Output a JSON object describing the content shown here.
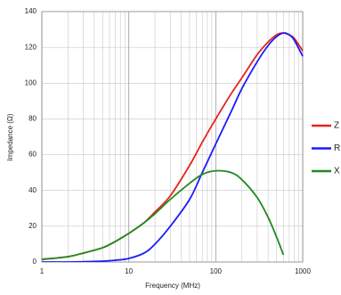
{
  "chart_data": {
    "type": "line",
    "x_label": "Frequency (MHz)",
    "y_label": "Impedance (Ω)",
    "log_x": true,
    "grid": true,
    "x": [
      1,
      2,
      3,
      5,
      7,
      10,
      15,
      20,
      30,
      50,
      70,
      100,
      150,
      200,
      300,
      400,
      500,
      600,
      700,
      800,
      1000
    ],
    "series": [
      {
        "name": "Z",
        "color": "#e8231b",
        "values": [
          1.5,
          3,
          5,
          8,
          11.5,
          16,
          22,
          28,
          37,
          54,
          67,
          80,
          94,
          103,
          116,
          123,
          127,
          128,
          127,
          125,
          118
        ]
      },
      {
        "name": "R",
        "color": "#1a1aff",
        "values": [
          0,
          0,
          0.2,
          0.5,
          1,
          2,
          5,
          10,
          20,
          35,
          50,
          66,
          84,
          97,
          112,
          121,
          126,
          128,
          127,
          124,
          115
        ]
      },
      {
        "name": "X",
        "color": "#1f8a1f",
        "values": [
          1.5,
          3,
          5,
          8,
          11.5,
          16,
          22,
          27,
          35,
          44,
          49,
          51,
          50,
          46,
          36,
          25,
          14,
          4,
          null,
          null,
          null
        ]
      }
    ],
    "xlim": [
      1,
      1000
    ],
    "ylim": [
      0,
      140
    ],
    "xticks": [
      1,
      10,
      100,
      1000
    ],
    "yticks": [
      0,
      20,
      40,
      60,
      80,
      100,
      120,
      140
    ],
    "xgrid": [
      2,
      3,
      4,
      5,
      6,
      7,
      8,
      9,
      20,
      30,
      40,
      50,
      60,
      70,
      80,
      90,
      200,
      300,
      400,
      500,
      600,
      700,
      800,
      900
    ],
    "legend": "right"
  }
}
